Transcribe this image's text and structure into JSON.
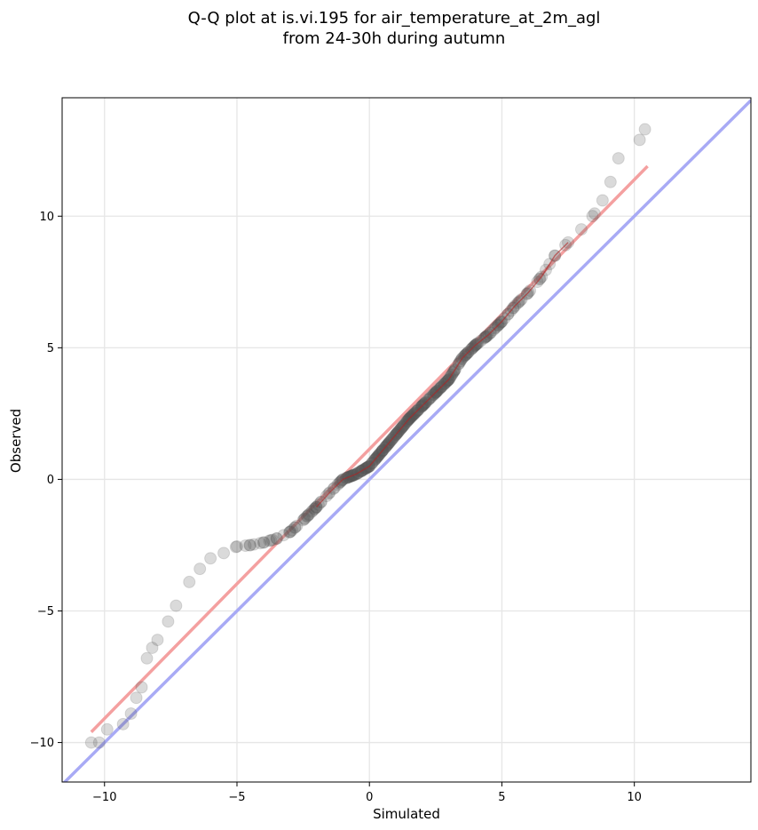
{
  "chart_data": {
    "type": "scatter",
    "title": "Q-Q plot at is.vi.195 for air_temperature_at_2m_agl",
    "subtitle": "from 24-30h during autumn",
    "xlabel": "Simulated",
    "ylabel": "Observed",
    "xlim": [
      -11.6,
      14.4
    ],
    "ylim": [
      -11.5,
      14.5
    ],
    "xticks": [
      -10,
      -5,
      0,
      5,
      10
    ],
    "yticks": [
      -10,
      -5,
      0,
      5,
      10
    ],
    "xtick_labels": [
      "−10",
      "−5",
      "0",
      "5",
      "10"
    ],
    "ytick_labels": [
      "−10",
      "−5",
      "0",
      "5",
      "10"
    ],
    "grid": true,
    "colors": {
      "points": "#555555",
      "fit_line": "#f4a0a0",
      "identity_line": "#a8aaf5",
      "center_trace": "#b22222"
    },
    "fit_line": {
      "x": [
        -10.5,
        10.5
      ],
      "y": [
        -9.6,
        11.9
      ]
    },
    "identity_line": {
      "x": [
        -11.6,
        14.4
      ],
      "y": [
        -11.6,
        14.4
      ]
    },
    "quantiles": {
      "x": [
        -10.5,
        -10.2,
        -9.9,
        -9.3,
        -9.0,
        -8.8,
        -8.6,
        -8.4,
        -8.2,
        -8.0,
        -7.6,
        -7.3,
        -6.8,
        -6.4,
        -6.0,
        -5.5,
        -5.0,
        -4.5,
        -4.0,
        -3.5,
        -3.0,
        -2.5,
        -2.0,
        -1.5,
        -1.0,
        -0.5,
        0.0,
        0.5,
        1.0,
        1.5,
        2.0,
        2.5,
        3.0,
        3.5,
        4.0,
        4.5,
        5.0,
        5.5,
        6.0,
        6.5,
        7.0,
        7.5,
        8.0,
        8.5,
        8.8,
        9.1,
        9.4,
        10.2,
        10.4
      ],
      "y": [
        -10.0,
        -10.0,
        -9.5,
        -9.3,
        -8.9,
        -8.3,
        -7.9,
        -6.8,
        -6.4,
        -6.1,
        -5.4,
        -4.8,
        -3.9,
        -3.4,
        -3.0,
        -2.8,
        -2.55,
        -2.5,
        -2.4,
        -2.25,
        -2.0,
        -1.55,
        -1.05,
        -0.5,
        0.0,
        0.2,
        0.5,
        1.1,
        1.7,
        2.3,
        2.8,
        3.3,
        3.8,
        4.6,
        5.1,
        5.5,
        6.0,
        6.6,
        7.1,
        7.7,
        8.5,
        9.0,
        9.5,
        10.1,
        10.6,
        11.3,
        12.2,
        12.9,
        13.3
      ]
    }
  }
}
